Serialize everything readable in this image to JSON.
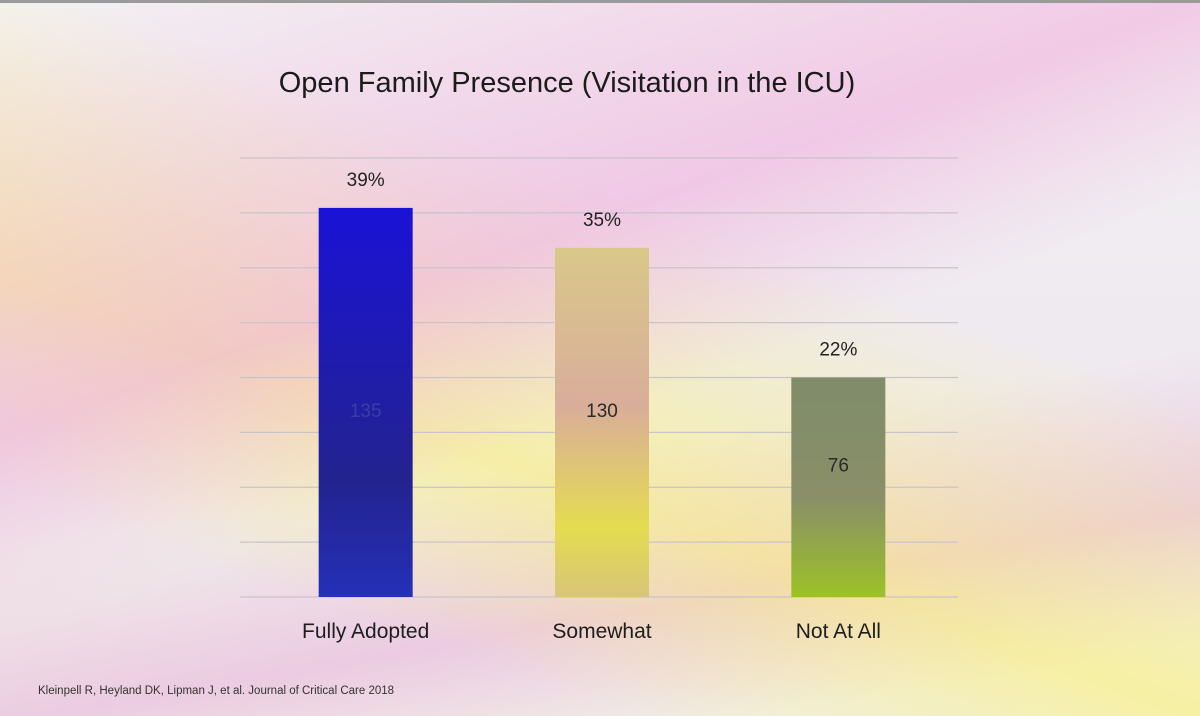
{
  "slide": {
    "citation": "Kleinpell R, Heyland DK, Lipman J, et al. Journal of Critical Care 2018"
  },
  "chart_data": {
    "type": "bar",
    "title": "Open Family Presence (Visitation in the ICU)",
    "xlabel": "",
    "ylabel": "",
    "categories": [
      "Fully Adopted",
      "Somewhat",
      "Not At All"
    ],
    "values": [
      39,
      35,
      22
    ],
    "value_labels": [
      "39%",
      "35%",
      "22%"
    ],
    "counts": [
      135,
      130,
      76
    ],
    "count_labels": [
      "135",
      "130",
      "76"
    ],
    "ylim": [
      0,
      44
    ],
    "grid": true,
    "legend": "none",
    "colors": [
      "#1f1ad1",
      "#d8c07a",
      "#8fae3e"
    ]
  }
}
